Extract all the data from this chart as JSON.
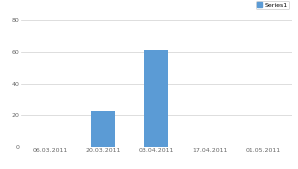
{
  "categories": [
    "06.03.2011",
    "20.03.2011",
    "03.04.2011",
    "17.04.2011",
    "01.05.2011"
  ],
  "values": [
    0,
    23,
    61,
    0,
    0
  ],
  "bar_color": "#5b9bd5",
  "background_color": "#ffffff",
  "grid_color": "#d0d0d0",
  "legend_label": "Series1",
  "legend_color": "#5b9bd5",
  "ylim": [
    0,
    80
  ],
  "yticks": [
    0,
    20,
    40,
    60,
    80
  ],
  "tick_fontsize": 4.5,
  "legend_fontsize": 4.5,
  "figure_bg": "#ffffff"
}
